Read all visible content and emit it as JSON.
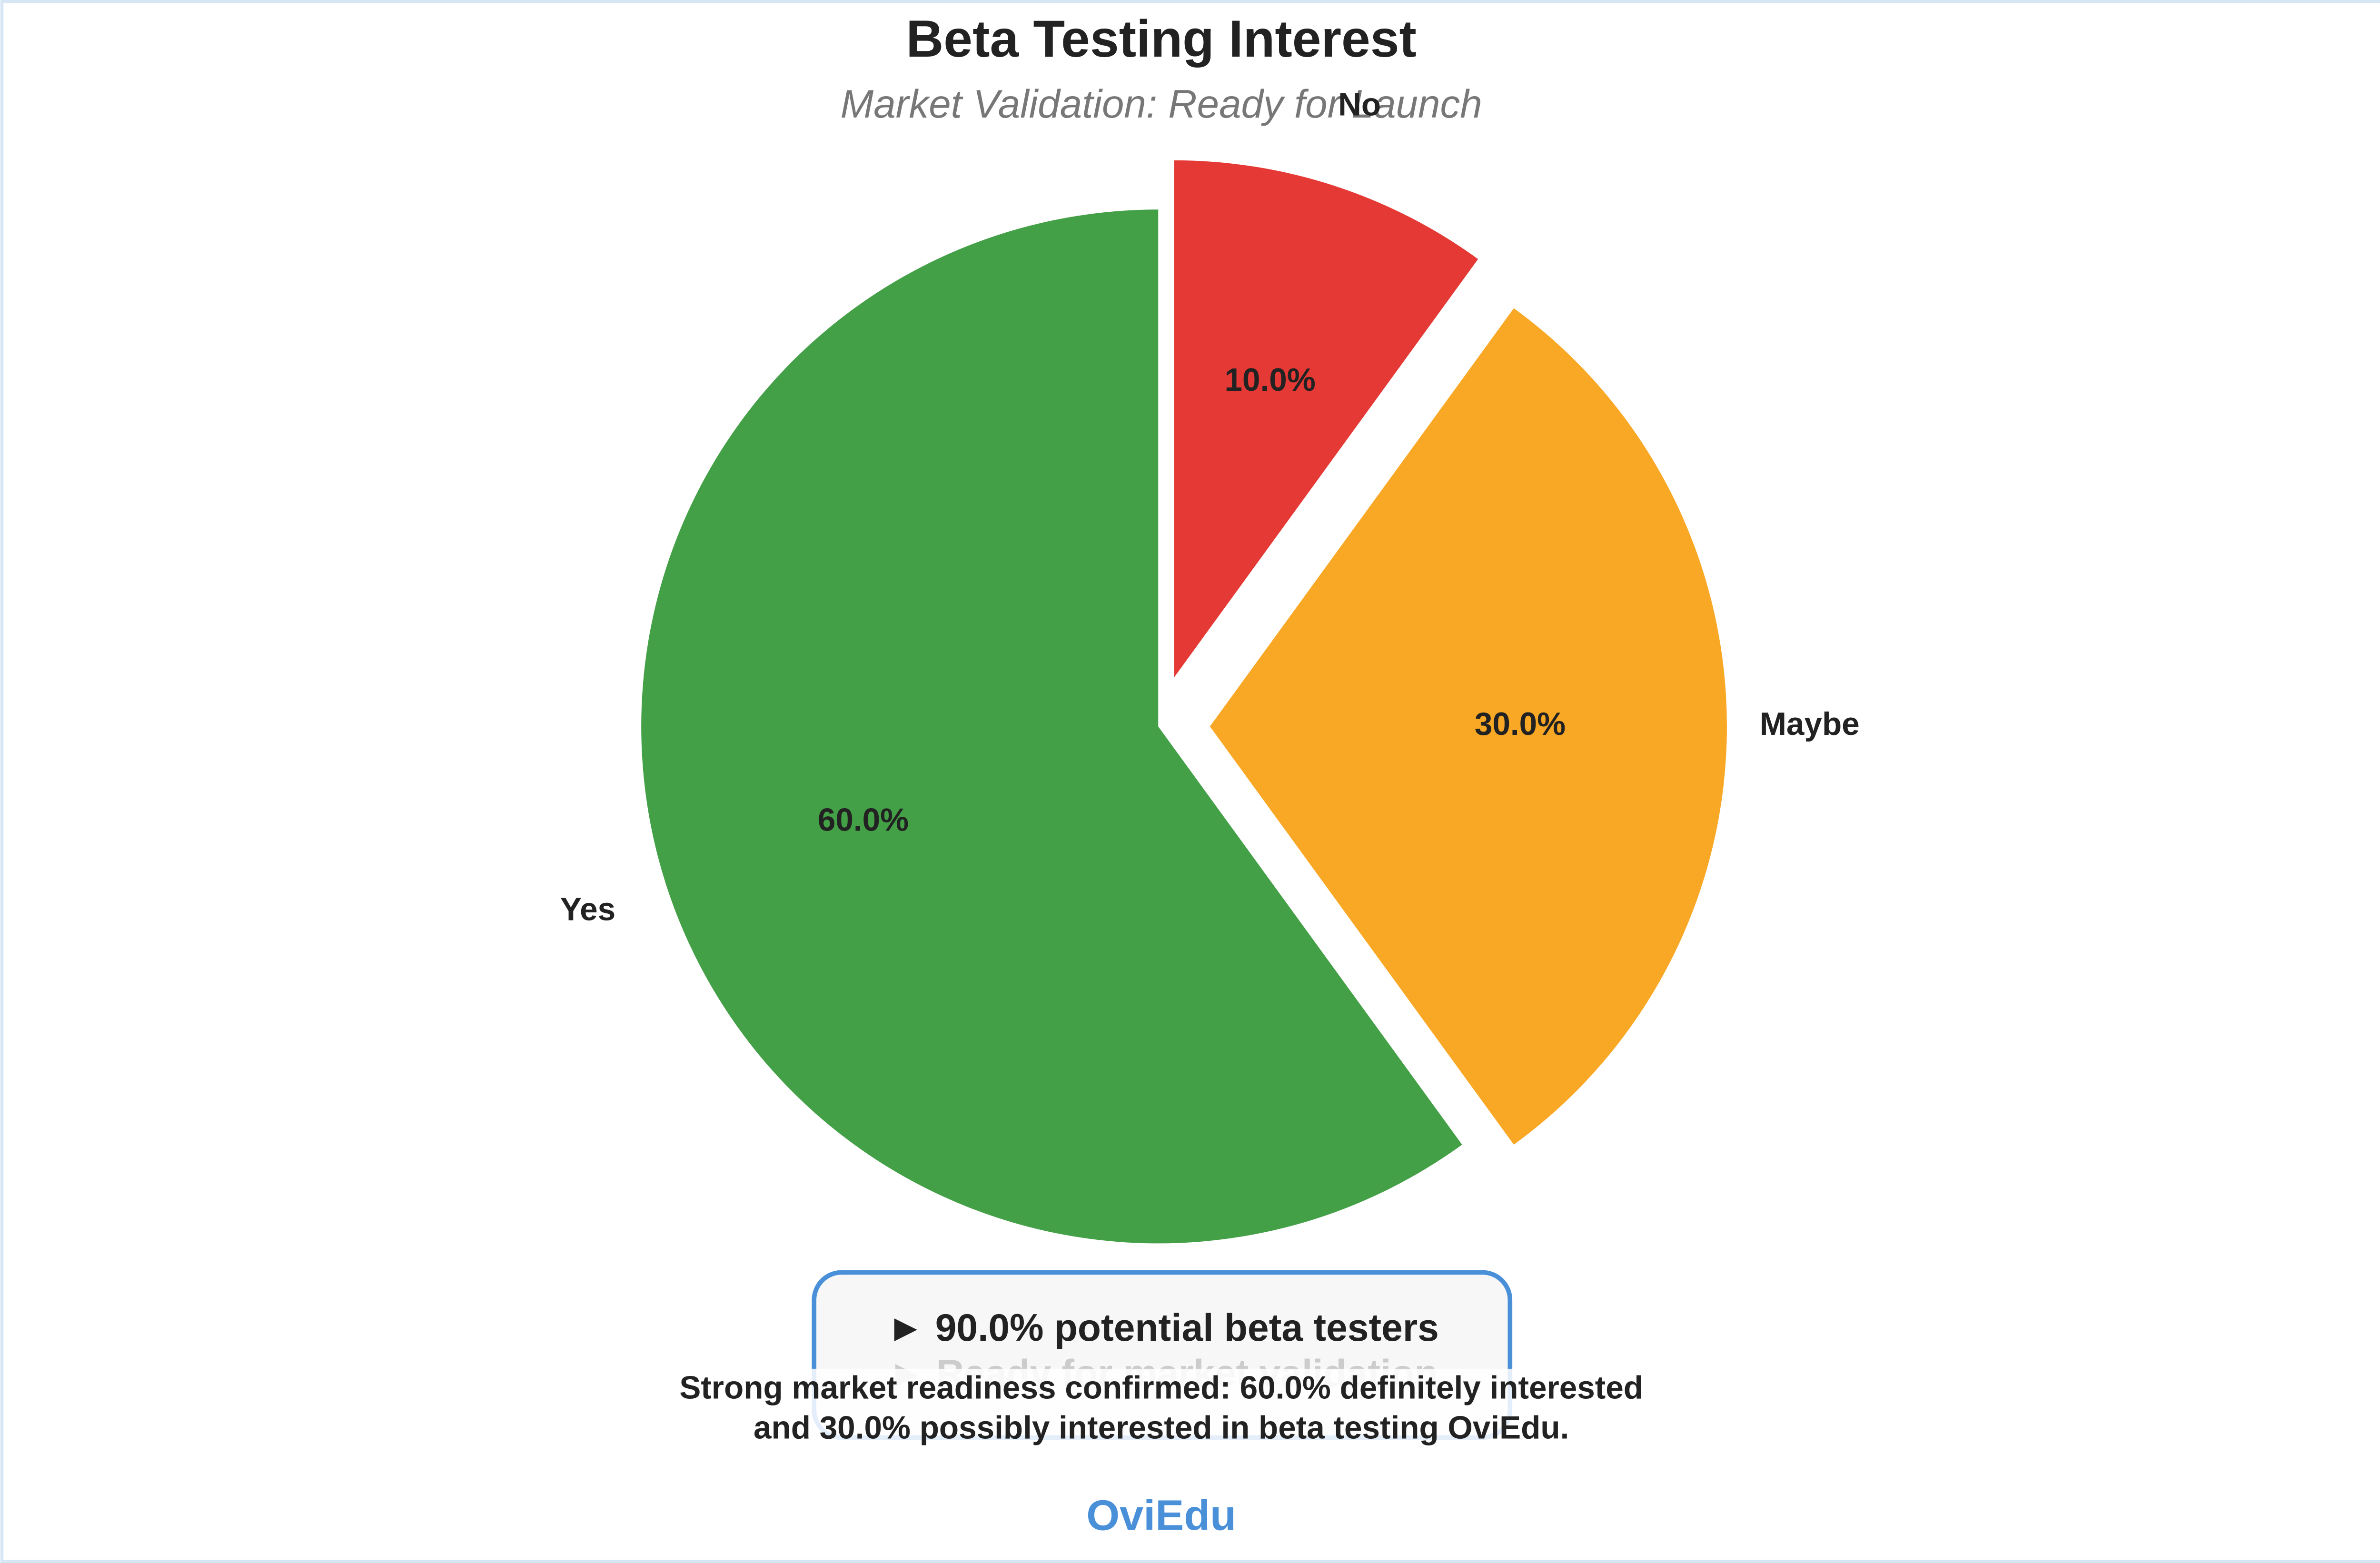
{
  "chart_data": {
    "type": "pie",
    "title": "Beta Testing Interest",
    "subtitle": "Market Validation: Ready for Launch",
    "categories": [
      "Yes",
      "Maybe",
      "No"
    ],
    "values": [
      60,
      30,
      10
    ],
    "value_labels": [
      "60.0%",
      "30.0%",
      "10.0%"
    ],
    "colors": [
      "#43a047",
      "#f9a825",
      "#e53935"
    ],
    "explode": [
      0,
      0.1,
      0.1
    ],
    "annotation_box": [
      "► 90.0% potential beta testers",
      "► Ready for market validation"
    ],
    "caption": [
      "Strong market readiness confirmed: 60.0% definitely interested",
      "and 30.0% possibly interested in beta testing OviEdu."
    ],
    "footer": "OviEdu"
  }
}
